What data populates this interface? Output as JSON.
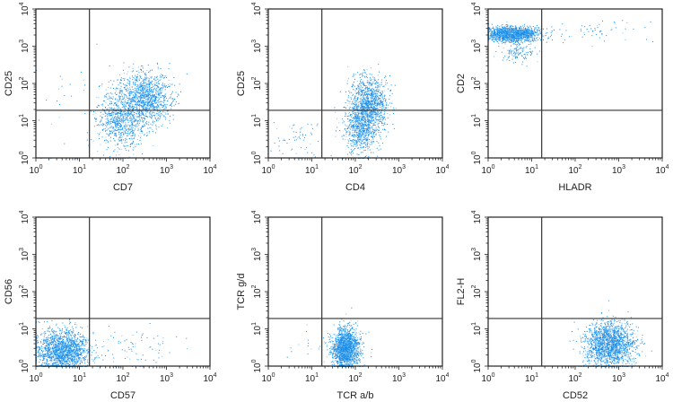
{
  "figure": {
    "dot_color": "#1a8ee8",
    "dot_color_light": "#7fc0f0",
    "gate_color": "#333333"
  },
  "chart_data": [
    {
      "type": "scatter",
      "title": "",
      "xlabel": "CD7",
      "ylabel": "CD25",
      "xscale": "log",
      "yscale": "log",
      "xlim": [
        1,
        10000
      ],
      "ylim": [
        1,
        10000
      ],
      "xticks": [
        "10^0",
        "10^1",
        "10^2",
        "10^3",
        "10^4"
      ],
      "yticks": [
        "10^0",
        "10^1",
        "10^2",
        "10^3",
        "10^4"
      ],
      "gates": {
        "x": 17,
        "y": 19
      },
      "clusters": [
        {
          "center": [
            350,
            45
          ],
          "spread_log": [
            0.28,
            0.35
          ],
          "count": 1100
        },
        {
          "center": [
            90,
            12
          ],
          "spread_log": [
            0.3,
            0.4
          ],
          "count": 900
        },
        {
          "center": [
            4,
            40
          ],
          "spread_log": [
            0.5,
            0.8
          ],
          "count": 25
        }
      ]
    },
    {
      "type": "scatter",
      "title": "",
      "xlabel": "CD4",
      "ylabel": "CD25",
      "xscale": "log",
      "yscale": "log",
      "xlim": [
        1,
        10000
      ],
      "ylim": [
        1,
        10000
      ],
      "xticks": [
        "10^0",
        "10^1",
        "10^2",
        "10^3",
        "10^4"
      ],
      "yticks": [
        "10^0",
        "10^1",
        "10^2",
        "10^3",
        "10^4"
      ],
      "gates": {
        "x": 17,
        "y": 19
      },
      "clusters": [
        {
          "center": [
            200,
            30
          ],
          "spread_log": [
            0.22,
            0.35
          ],
          "count": 1100
        },
        {
          "center": [
            130,
            6
          ],
          "spread_log": [
            0.2,
            0.35
          ],
          "count": 700
        },
        {
          "center": [
            5,
            4
          ],
          "spread_log": [
            0.35,
            0.3
          ],
          "count": 60
        }
      ]
    },
    {
      "type": "scatter",
      "title": "",
      "xlabel": "HLADR",
      "ylabel": "CD2",
      "xscale": "log",
      "yscale": "log",
      "xlim": [
        1,
        10000
      ],
      "ylim": [
        1,
        10000
      ],
      "xticks": [
        "10^0",
        "10^1",
        "10^2",
        "10^3",
        "10^4"
      ],
      "yticks": [
        "10^0",
        "10^1",
        "10^2",
        "10^3",
        "10^4"
      ],
      "gates": {
        "x": 17,
        "y": 19
      },
      "clusters": [
        {
          "center": [
            3.5,
            2200
          ],
          "spread_log": [
            0.3,
            0.1
          ],
          "count": 1600
        },
        {
          "center": [
            5,
            700
          ],
          "spread_log": [
            0.2,
            0.15
          ],
          "count": 120
        },
        {
          "center": [
            200,
            2500
          ],
          "spread_log": [
            0.6,
            0.15
          ],
          "count": 60
        }
      ]
    },
    {
      "type": "scatter",
      "title": "",
      "xlabel": "CD57",
      "ylabel": "CD56",
      "xscale": "log",
      "yscale": "log",
      "xlim": [
        1,
        10000
      ],
      "ylim": [
        1,
        10000
      ],
      "xticks": [
        "10^0",
        "10^1",
        "10^2",
        "10^3",
        "10^4"
      ],
      "yticks": [
        "10^0",
        "10^1",
        "10^2",
        "10^3",
        "10^4"
      ],
      "gates": {
        "x": 17,
        "y": 19
      },
      "clusters": [
        {
          "center": [
            4,
            2.5
          ],
          "spread_log": [
            0.3,
            0.28
          ],
          "count": 1800
        },
        {
          "center": [
            150,
            3
          ],
          "spread_log": [
            0.6,
            0.3
          ],
          "count": 90
        }
      ]
    },
    {
      "type": "scatter",
      "title": "",
      "xlabel": "TCR a/b",
      "ylabel": "TCR g/d",
      "xscale": "log",
      "yscale": "log",
      "xlim": [
        1,
        10000
      ],
      "ylim": [
        1,
        10000
      ],
      "xticks": [
        "10^0",
        "10^1",
        "10^2",
        "10^3",
        "10^4"
      ],
      "yticks": [
        "10^0",
        "10^1",
        "10^2",
        "10^3",
        "10^4"
      ],
      "gates": {
        "x": 17,
        "y": 19
      },
      "clusters": [
        {
          "center": [
            60,
            3
          ],
          "spread_log": [
            0.15,
            0.27
          ],
          "count": 1800
        },
        {
          "center": [
            8,
            3
          ],
          "spread_log": [
            0.25,
            0.3
          ],
          "count": 15
        }
      ]
    },
    {
      "type": "scatter",
      "title": "",
      "xlabel": "CD52",
      "ylabel": "FL2-H",
      "xscale": "log",
      "yscale": "log",
      "xlim": [
        1,
        10000
      ],
      "ylim": [
        1,
        10000
      ],
      "xticks": [
        "10^0",
        "10^1",
        "10^2",
        "10^3",
        "10^4"
      ],
      "yticks": [
        "10^0",
        "10^1",
        "10^2",
        "10^3",
        "10^4"
      ],
      "gates": {
        "x": 17,
        "y": 19
      },
      "clusters": [
        {
          "center": [
            600,
            4
          ],
          "spread_log": [
            0.28,
            0.3
          ],
          "count": 1800
        }
      ]
    }
  ]
}
